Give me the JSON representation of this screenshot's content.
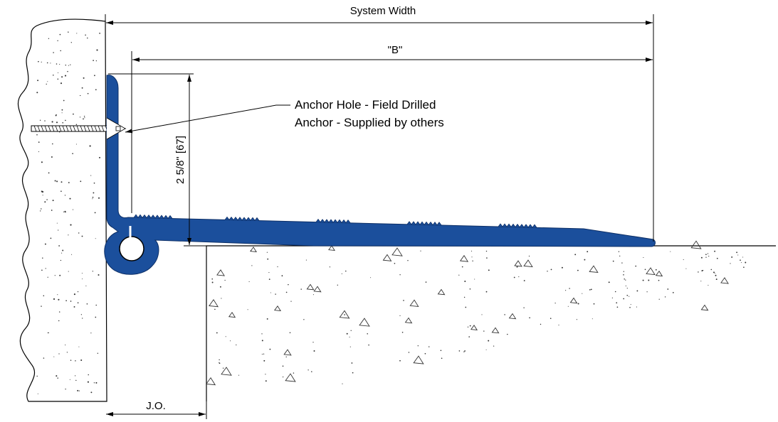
{
  "labels": {
    "system_width": "System Width",
    "b_dimension": "\"B\"",
    "height_dimension": "2 5/8\" [67]",
    "anchor_hole": "Anchor Hole - Field Drilled",
    "anchor_supplied": "Anchor - Supplied by others",
    "joint_opening": "J.O."
  },
  "colors": {
    "profile_fill": "#1b4f9c",
    "line": "#000000",
    "background": "#ffffff"
  },
  "icons": {
    "profile": "transition-cover-profile",
    "anchor": "anchor-screw-icon"
  }
}
